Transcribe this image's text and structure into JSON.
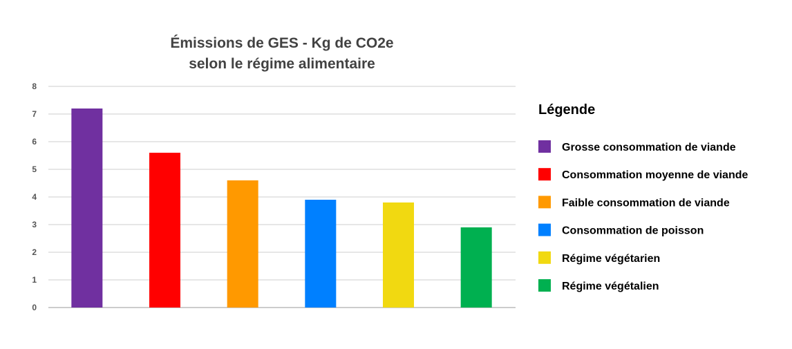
{
  "chart_data": {
    "type": "bar",
    "title_lines": [
      "Émissions de GES - Kg de CO2e",
      "selon le régime alimentaire"
    ],
    "xlabel": "",
    "ylabel": "",
    "ylim": [
      0,
      8
    ],
    "yticks": [
      "0",
      "1",
      "2",
      "3",
      "4",
      "5",
      "6",
      "7",
      "8"
    ],
    "grid": true,
    "legend_title": "Légende",
    "legend_position": "right",
    "categories": [
      "Grosse consommation de viande",
      "Consommation moyenne de viande",
      "Faible consommation de viande",
      "Consommation de poisson",
      "Régime végétarien",
      "Régime végétalien"
    ],
    "values": [
      7.2,
      5.6,
      4.6,
      3.9,
      3.8,
      2.9
    ],
    "colors": [
      "#7030a0",
      "#ff0000",
      "#ff9900",
      "#0080ff",
      "#f1d911",
      "#00b050"
    ]
  }
}
